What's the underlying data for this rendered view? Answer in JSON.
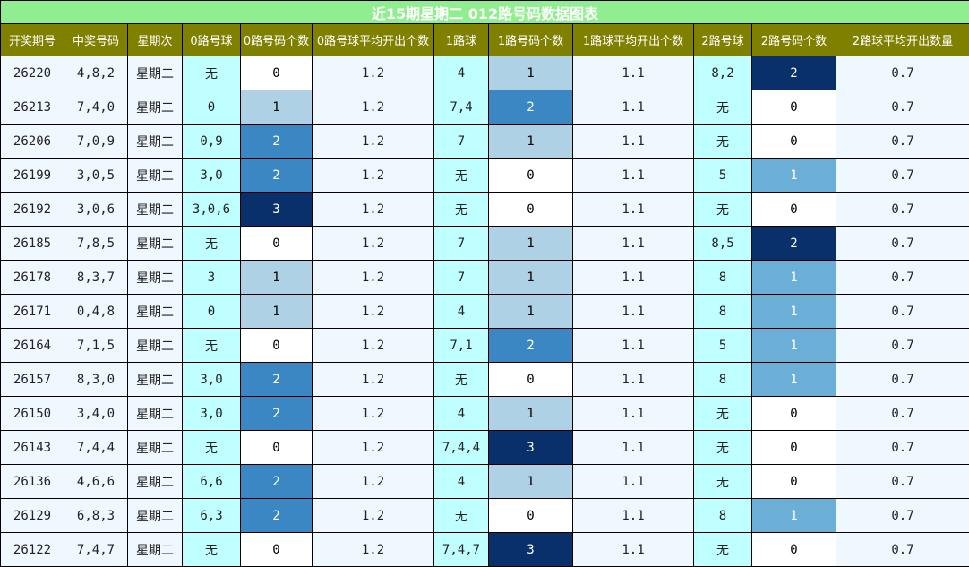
{
  "chart_data": {
    "type": "table",
    "title": "近15期星期二 012路号码数据图表",
    "columns": [
      "开奖期号",
      "中奖号码",
      "星期次",
      "0路号球",
      "0路号码个数",
      "0路号球平均开出个数",
      "1路球",
      "1路号码个数",
      "1路球平均开出个数",
      "2路号球",
      "2路号码个数",
      "2路球平均开出数量"
    ],
    "rows": [
      {
        "period": "26220",
        "numbers": "4,8,2",
        "weekday": "星期二",
        "r0_balls": "无",
        "r0_count": 0,
        "r0_avg": "1.2",
        "r1_balls": "4",
        "r1_count": 1,
        "r1_avg": "1.1",
        "r2_balls": "8,2",
        "r2_count": 2,
        "r2_avg": "0.7"
      },
      {
        "period": "26213",
        "numbers": "7,4,0",
        "weekday": "星期二",
        "r0_balls": "0",
        "r0_count": 1,
        "r0_avg": "1.2",
        "r1_balls": "7,4",
        "r1_count": 2,
        "r1_avg": "1.1",
        "r2_balls": "无",
        "r2_count": 0,
        "r2_avg": "0.7"
      },
      {
        "period": "26206",
        "numbers": "7,0,9",
        "weekday": "星期二",
        "r0_balls": "0,9",
        "r0_count": 2,
        "r0_avg": "1.2",
        "r1_balls": "7",
        "r1_count": 1,
        "r1_avg": "1.1",
        "r2_balls": "无",
        "r2_count": 0,
        "r2_avg": "0.7"
      },
      {
        "period": "26199",
        "numbers": "3,0,5",
        "weekday": "星期二",
        "r0_balls": "3,0",
        "r0_count": 2,
        "r0_avg": "1.2",
        "r1_balls": "无",
        "r1_count": 0,
        "r1_avg": "1.1",
        "r2_balls": "5",
        "r2_count": 1,
        "r2_avg": "0.7"
      },
      {
        "period": "26192",
        "numbers": "3,0,6",
        "weekday": "星期二",
        "r0_balls": "3,0,6",
        "r0_count": 3,
        "r0_avg": "1.2",
        "r1_balls": "无",
        "r1_count": 0,
        "r1_avg": "1.1",
        "r2_balls": "无",
        "r2_count": 0,
        "r2_avg": "0.7"
      },
      {
        "period": "26185",
        "numbers": "7,8,5",
        "weekday": "星期二",
        "r0_balls": "无",
        "r0_count": 0,
        "r0_avg": "1.2",
        "r1_balls": "7",
        "r1_count": 1,
        "r1_avg": "1.1",
        "r2_balls": "8,5",
        "r2_count": 2,
        "r2_avg": "0.7"
      },
      {
        "period": "26178",
        "numbers": "8,3,7",
        "weekday": "星期二",
        "r0_balls": "3",
        "r0_count": 1,
        "r0_avg": "1.2",
        "r1_balls": "7",
        "r1_count": 1,
        "r1_avg": "1.1",
        "r2_balls": "8",
        "r2_count": 1,
        "r2_avg": "0.7"
      },
      {
        "period": "26171",
        "numbers": "0,4,8",
        "weekday": "星期二",
        "r0_balls": "0",
        "r0_count": 1,
        "r0_avg": "1.2",
        "r1_balls": "4",
        "r1_count": 1,
        "r1_avg": "1.1",
        "r2_balls": "8",
        "r2_count": 1,
        "r2_avg": "0.7"
      },
      {
        "period": "26164",
        "numbers": "7,1,5",
        "weekday": "星期二",
        "r0_balls": "无",
        "r0_count": 0,
        "r0_avg": "1.2",
        "r1_balls": "7,1",
        "r1_count": 2,
        "r1_avg": "1.1",
        "r2_balls": "5",
        "r2_count": 1,
        "r2_avg": "0.7"
      },
      {
        "period": "26157",
        "numbers": "8,3,0",
        "weekday": "星期二",
        "r0_balls": "3,0",
        "r0_count": 2,
        "r0_avg": "1.2",
        "r1_balls": "无",
        "r1_count": 0,
        "r1_avg": "1.1",
        "r2_balls": "8",
        "r2_count": 1,
        "r2_avg": "0.7"
      },
      {
        "period": "26150",
        "numbers": "3,4,0",
        "weekday": "星期二",
        "r0_balls": "3,0",
        "r0_count": 2,
        "r0_avg": "1.2",
        "r1_balls": "4",
        "r1_count": 1,
        "r1_avg": "1.1",
        "r2_balls": "无",
        "r2_count": 0,
        "r2_avg": "0.7"
      },
      {
        "period": "26143",
        "numbers": "7,4,4",
        "weekday": "星期二",
        "r0_balls": "无",
        "r0_count": 0,
        "r0_avg": "1.2",
        "r1_balls": "7,4,4",
        "r1_count": 3,
        "r1_avg": "1.1",
        "r2_balls": "无",
        "r2_count": 0,
        "r2_avg": "0.7"
      },
      {
        "period": "26136",
        "numbers": "4,6,6",
        "weekday": "星期二",
        "r0_balls": "6,6",
        "r0_count": 2,
        "r0_avg": "1.2",
        "r1_balls": "4",
        "r1_count": 1,
        "r1_avg": "1.1",
        "r2_balls": "无",
        "r2_count": 0,
        "r2_avg": "0.7"
      },
      {
        "period": "26129",
        "numbers": "6,8,3",
        "weekday": "星期二",
        "r0_balls": "6,3",
        "r0_count": 2,
        "r0_avg": "1.2",
        "r1_balls": "无",
        "r1_count": 0,
        "r1_avg": "1.1",
        "r2_balls": "8",
        "r2_count": 1,
        "r2_avg": "0.7"
      },
      {
        "period": "26122",
        "numbers": "7,4,7",
        "weekday": "星期二",
        "r0_balls": "无",
        "r0_count": 0,
        "r0_avg": "1.2",
        "r1_balls": "7,4,7",
        "r1_count": 3,
        "r1_avg": "1.1",
        "r2_balls": "无",
        "r2_count": 0,
        "r2_avg": "0.7"
      }
    ]
  },
  "colors": {
    "title_bg": "#90ee90",
    "header_bg": "#808000",
    "cell_plain": "#f0f8ff",
    "cell_cyan": "#c0ffff",
    "heat_r0_r1": {
      "0": "#ffffff",
      "1": "#aed1e6",
      "2": "#3a87c3",
      "3": "#09306b"
    },
    "heat_r2": {
      "0": "#ffffff",
      "1": "#6baed6",
      "2": "#09306b"
    }
  }
}
